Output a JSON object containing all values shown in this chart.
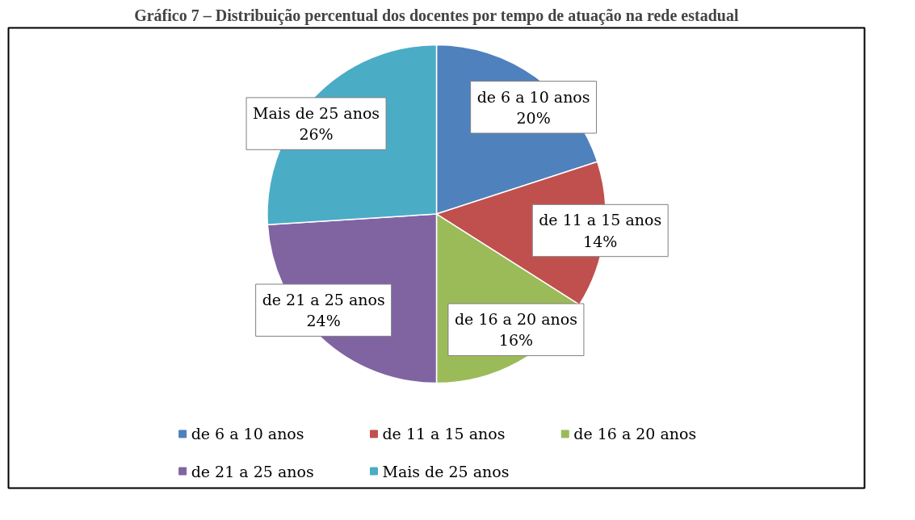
{
  "chart_data": {
    "type": "pie",
    "title": "Gráfico 7 – Distribuição percentual dos docentes por tempo de atuação na rede estadual",
    "categories": [
      "de 6 a 10 anos",
      "de 11 a 15 anos",
      "de 16 a 20 anos",
      "de 21 a 25 anos",
      "Mais de 25 anos"
    ],
    "values": [
      20,
      14,
      16,
      24,
      26
    ],
    "value_labels": [
      "20%",
      "14%",
      "16%",
      "24%",
      "26%"
    ],
    "colors": [
      "#4f81bd",
      "#c0504d",
      "#9bbb59",
      "#8064a2",
      "#4bacc6"
    ],
    "data_labels": true,
    "legend": "bottom"
  }
}
